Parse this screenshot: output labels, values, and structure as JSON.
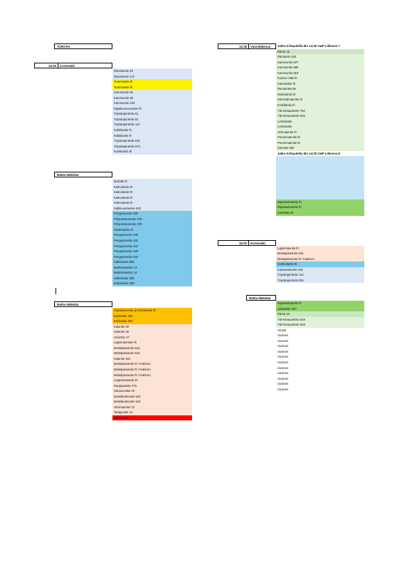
{
  "colors": {
    "lightblue": "#dbe7f5",
    "yellow": "#fff200",
    "skyblue": "#7fc9ea",
    "paleblue": "#c4e4f5",
    "orange": "#ffc000",
    "peach": "#fde3d6",
    "red": "#ff0000",
    "green": "#92d36a",
    "lightgreen": "#e2f1d9",
    "mintgreen": "#c8e9c0"
  },
  "left": {
    "day_label": "TORSTAI",
    "start_time": "14:20",
    "start_location": "Kortemäki",
    "section1": [
      {
        "text": "Ritomientie 49",
        "color": "lightblue"
      },
      {
        "text": "Ritomientie 172",
        "color": "lightblue"
      },
      {
        "text": "Tuomirastie th",
        "color": "yellow"
      },
      {
        "text": "Tuomirastie th",
        "color": "yellow"
      },
      {
        "text": "Kammuntie 85",
        "color": "lightblue"
      },
      {
        "text": "Kammuntie 85",
        "color": "lightblue"
      },
      {
        "text": "Kammuntie 103",
        "color": "lightblue"
      },
      {
        "text": "Eljaskummeentien th",
        "color": "lightblue"
      },
      {
        "text": "Töysänperäntie 81",
        "color": "lightblue"
      },
      {
        "text": "Töysänperäntie 81",
        "color": "lightblue"
      },
      {
        "text": "Töysänperäntie 114",
        "color": "lightblue"
      },
      {
        "text": "Kokkilantie th",
        "color": "lightblue"
      },
      {
        "text": "Kokkilantie th",
        "color": "lightblue"
      },
      {
        "text": "Töysänperäntie 631",
        "color": "lightblue"
      },
      {
        "text": "Töysänperäntie 674",
        "color": "lightblue"
      },
      {
        "text": "Kurikkantie th",
        "color": "lightblue"
      }
    ],
    "travel1_label": "Matka Mäkelää",
    "section2": [
      {
        "text": "Ikolintie th",
        "color": "lightblue"
      },
      {
        "text": "Kalmolantie th",
        "color": "lightblue"
      },
      {
        "text": "Kalmolantie th",
        "color": "lightblue"
      },
      {
        "text": "Kalmolantie th",
        "color": "lightblue"
      },
      {
        "text": "Kalmolantie th",
        "color": "lightblue"
      },
      {
        "text": "Kalkkuumäentie 520",
        "color": "lightblue"
      },
      {
        "text": "Pengerjoentie 280",
        "color": "skyblue"
      },
      {
        "text": "Pohjoisrannantie 378",
        "color": "skyblue"
      },
      {
        "text": "Pohjoisrannantie 378",
        "color": "skyblue"
      },
      {
        "text": "Verkkolantie th",
        "color": "skyblue"
      },
      {
        "text": "Pengerjoentie 429",
        "color": "skyblue"
      },
      {
        "text": "Pengerjoentie 432",
        "color": "skyblue"
      },
      {
        "text": "Pengerjoentie 432",
        "color": "skyblue"
      },
      {
        "text": "Pengerjoentie 429",
        "color": "skyblue"
      },
      {
        "text": "Pengerjoentie 432",
        "color": "skyblue"
      },
      {
        "text": "Kalkolantie 858",
        "color": "skyblue"
      },
      {
        "text": "Marttomäentie 14",
        "color": "skyblue"
      },
      {
        "text": "Marttomäentie 14",
        "color": "skyblue"
      },
      {
        "text": "Kalkolantie 338",
        "color": "skyblue"
      },
      {
        "text": "Kalkolantie 338",
        "color": "skyblue"
      }
    ],
    "travel2_label": "Matka Mäkelää",
    "section3": [
      {
        "text": "Vaarilanmentie ja Rotvalantie th",
        "color": "orange"
      },
      {
        "text": "Kurikantie 281",
        "color": "orange"
      },
      {
        "text": "Kurikantie 281",
        "color": "orange"
      },
      {
        "text": "Kalantie 39",
        "color": "peach"
      },
      {
        "text": "Kalantie 39",
        "color": "peach"
      },
      {
        "text": "Urrientie 47",
        "color": "peach"
      },
      {
        "text": "Lapinmäentien th",
        "color": "peach"
      },
      {
        "text": "Metsäpiesantie 644",
        "color": "peach"
      },
      {
        "text": "Metsäpiesantie 644",
        "color": "peach"
      },
      {
        "text": "Kalantie 181",
        "color": "peach"
      },
      {
        "text": "Metsäpiesantie th / Kukkoro",
        "color": "peach"
      },
      {
        "text": "Metsäpiesantie th / Kukkoro",
        "color": "peach"
      },
      {
        "text": "Metsäpiesantie th / Kukkoro",
        "color": "peach"
      },
      {
        "text": "Leppänmäentie th",
        "color": "peach"
      },
      {
        "text": "Raoppaantie 475",
        "color": "peach"
      },
      {
        "text": "Saraoventien th",
        "color": "peach"
      },
      {
        "text": "Metsäkulmantie 543",
        "color": "peach"
      },
      {
        "text": "Metsäkulmantie 543",
        "color": "peach"
      },
      {
        "text": "Hirvimäentie 10",
        "color": "peach"
      },
      {
        "text": "Tanppuntie 13",
        "color": "peach"
      },
      {
        "text": "Siikantie th",
        "color": "red"
      }
    ]
  },
  "right": {
    "time1": "14:35",
    "location1": "Vuoreläkenna",
    "header1": "Jatko Kirkaudella klo 14:30 O&P Liikenne 7",
    "section1": [
      {
        "text": "Rämä 16",
        "color": "mintgreen"
      },
      {
        "text": "Rämäntie 240",
        "color": "lightgreen"
      },
      {
        "text": "Kammuntie 527",
        "color": "lightgreen"
      },
      {
        "text": "Kammuntie 585",
        "color": "lightgreen"
      },
      {
        "text": "Kammuntie 818",
        "color": "lightgreen"
      },
      {
        "text": "Koulun mäki th",
        "color": "lightgreen"
      },
      {
        "text": "Kaivolantie th",
        "color": "lightgreen"
      },
      {
        "text": "Rautamäentie",
        "color": "lightgreen"
      },
      {
        "text": "Notkolantie th",
        "color": "lightgreen"
      },
      {
        "text": "Sammalmäentie th",
        "color": "lightgreen"
      },
      {
        "text": "Kiviniläntie th",
        "color": "lightgreen"
      },
      {
        "text": "Ylä-Kintaudentie 764",
        "color": "lightgreen"
      },
      {
        "text": "Ylä-Kintaudentie 903",
        "color": "lightgreen"
      },
      {
        "text": "Lehtolantie",
        "color": "lightgreen"
      },
      {
        "text": "Lehtolantie",
        "color": "lightgreen"
      },
      {
        "text": "Vehmaantie th",
        "color": "lightgreen"
      },
      {
        "text": "Porommäentie th",
        "color": "lightgreen"
      },
      {
        "text": "Porommäentie th",
        "color": "lightgreen"
      },
      {
        "text": "Sotuntie 580",
        "color": "lightgreen"
      }
    ],
    "header2": "Jatko Kirkaudella klo 14:30 O&P Liikenne 8",
    "section2": [
      {
        "text": "",
        "color": "paleblue"
      },
      {
        "text": "",
        "color": "paleblue"
      },
      {
        "text": "",
        "color": "paleblue"
      },
      {
        "text": "",
        "color": "paleblue"
      },
      {
        "text": "",
        "color": "paleblue"
      },
      {
        "text": "",
        "color": "paleblue"
      },
      {
        "text": "",
        "color": "paleblue"
      },
      {
        "text": "",
        "color": "paleblue"
      },
      {
        "text": "Rajakankaantie th",
        "color": "green"
      },
      {
        "text": "Rajakankaantie th",
        "color": "green"
      },
      {
        "text": "Kortesalo th",
        "color": "green"
      }
    ],
    "time2": "16:00",
    "location2": "Kortemäki",
    "section3": [
      {
        "text": "",
        "color": "white"
      },
      {
        "text": "Lapinmäentie th",
        "color": "peach"
      },
      {
        "text": "Metsäpiesantie 644",
        "color": "peach"
      },
      {
        "text": "Metsäpiesantie th / Kukkoro",
        "color": "peach"
      },
      {
        "text": "Verkkolantie th",
        "color": "skyblue"
      },
      {
        "text": "Kalvasmäentie 515",
        "color": "lightblue"
      },
      {
        "text": "Töysänperäntie 114",
        "color": "lightblue"
      },
      {
        "text": "Töysänperäntie 631",
        "color": "lightblue"
      }
    ],
    "travel_label": "Matka Mäkelää",
    "section4": [
      {
        "text": "Rajakankaantie th",
        "color": "green"
      },
      {
        "text": "Liikalantie 497",
        "color": "green"
      },
      {
        "text": "Rämä 16",
        "color": "mintgreen"
      },
      {
        "text": "Ylä-Kintaudentie 819",
        "color": "lightgreen"
      },
      {
        "text": "Ylä-Kintaudentie 819",
        "color": "lightgreen"
      },
      {
        "text": "Hoyttä",
        "color": "white"
      },
      {
        "text": "Uusinen",
        "color": "white"
      },
      {
        "text": "Uusinen",
        "color": "white"
      },
      {
        "text": "Uusinen",
        "color": "white"
      },
      {
        "text": "Uusinen",
        "color": "white"
      },
      {
        "text": "Uusinen",
        "color": "white"
      },
      {
        "text": "Uusinen",
        "color": "white"
      },
      {
        "text": "Uusinen",
        "color": "white"
      },
      {
        "text": "Uusinen",
        "color": "white"
      },
      {
        "text": "Uusinen",
        "color": "white"
      },
      {
        "text": "Uusinen",
        "color": "white"
      },
      {
        "text": "Uusinen",
        "color": "white"
      }
    ]
  }
}
